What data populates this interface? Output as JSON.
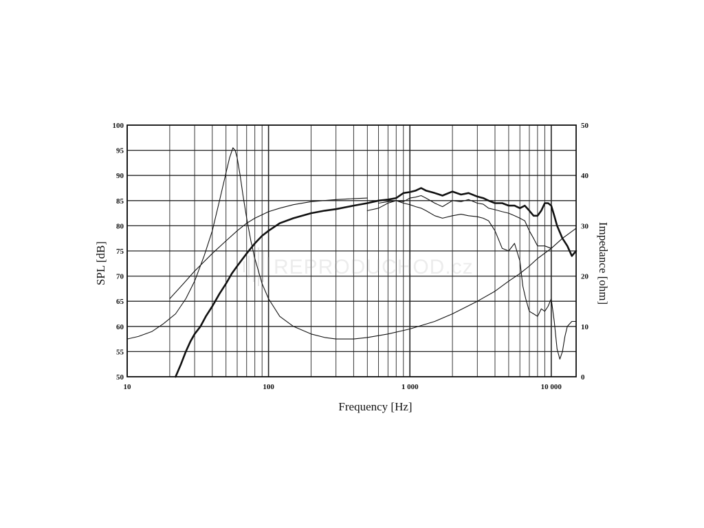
{
  "chart_data": {
    "type": "line",
    "xlabel": "Frequency [Hz]",
    "ylabel": "SPL [dB]",
    "y2label": "Impedance [ohm]",
    "xscale": "log",
    "xlim": [
      10,
      15000
    ],
    "ylim": [
      50,
      100
    ],
    "y2lim": [
      0,
      50
    ],
    "grid": true,
    "x_tick_labels": [
      {
        "value": 10,
        "label": "10"
      },
      {
        "value": 100,
        "label": "100"
      },
      {
        "value": 1000,
        "label": "1 000"
      },
      {
        "value": 10000,
        "label": "10 000"
      }
    ],
    "y_tick_labels": [
      "50",
      "55",
      "60",
      "65",
      "70",
      "75",
      "80",
      "85",
      "90",
      "95",
      "100"
    ],
    "y2_tick_labels": [
      "0",
      "10",
      "20",
      "30",
      "40",
      "50"
    ],
    "watermark": "REPRODUCHOD.cz",
    "series": [
      {
        "axis": "left",
        "style": "thick",
        "x": [
          22,
          24,
          26,
          28,
          30,
          33,
          36,
          40,
          45,
          50,
          55,
          60,
          70,
          80,
          90,
          100,
          120,
          150,
          200,
          250,
          300,
          400,
          500,
          600,
          700,
          800,
          900,
          1000,
          1100,
          1200,
          1300,
          1500,
          1700,
          2000,
          2300,
          2600,
          3000,
          3300,
          3600,
          4000,
          4500,
          5000,
          5500,
          6000,
          6500,
          7000,
          7500,
          8000,
          8500,
          9000,
          9500,
          10000,
          10500,
          11000,
          12000,
          13000,
          14000,
          15000
        ],
        "y": [
          50,
          52.5,
          55,
          57,
          58.5,
          60,
          62,
          64,
          66.5,
          68.5,
          70.5,
          72,
          74.5,
          76.5,
          78,
          79,
          80.5,
          81.5,
          82.5,
          83,
          83.3,
          84,
          84.5,
          85,
          85.2,
          85.5,
          86.5,
          86.7,
          87,
          87.5,
          87,
          86.5,
          86,
          86.8,
          86.2,
          86.5,
          85.8,
          85.5,
          85,
          84.5,
          84.5,
          84,
          84,
          83.5,
          84,
          83,
          82,
          82,
          83,
          84.5,
          84.5,
          84,
          82,
          80,
          77.5,
          76,
          74,
          75
        ]
      },
      {
        "axis": "left",
        "style": "thin",
        "x": [
          20,
          25,
          30,
          40,
          50,
          60,
          70,
          80,
          100,
          120,
          150,
          200,
          300,
          400,
          500
        ],
        "y": [
          65.5,
          68.5,
          71,
          74.5,
          77,
          79,
          80.5,
          81.5,
          82.8,
          83.5,
          84.2,
          84.8,
          85.2,
          85.4,
          85.5
        ]
      },
      {
        "axis": "left",
        "style": "thin",
        "x": [
          500,
          600,
          700,
          800,
          900,
          1000,
          1100,
          1200,
          1300,
          1500,
          1700,
          2000,
          2300,
          2600,
          3000,
          3300,
          3600,
          4000,
          4500,
          5000,
          5500,
          6000,
          6500,
          7000,
          7500,
          8000,
          9000,
          10000
        ],
        "y": [
          83,
          83.5,
          84.5,
          85,
          84.8,
          85.5,
          85.7,
          86,
          85.5,
          84.5,
          83.8,
          85,
          84.8,
          85.2,
          84.5,
          84.3,
          83.5,
          83.2,
          82.8,
          82.5,
          82,
          81.5,
          81,
          79,
          77.5,
          76,
          76,
          75.5
        ]
      },
      {
        "axis": "left",
        "style": "thin",
        "x": [
          600,
          700,
          800,
          900,
          1000,
          1100,
          1200,
          1300,
          1500,
          1700,
          2000,
          2300,
          2600,
          3000,
          3300,
          3600,
          4000,
          4500,
          5000,
          5500,
          6000,
          6300,
          6600,
          7000,
          7500,
          8000,
          8500,
          9000,
          9500,
          10000,
          10500,
          11000,
          11500,
          12000,
          12500,
          13000,
          14000,
          15000
        ],
        "y": [
          84.5,
          84.8,
          85,
          84.5,
          84.2,
          83.8,
          83.5,
          83,
          82,
          81.5,
          82,
          82.3,
          82,
          81.8,
          81.5,
          81,
          79,
          75.5,
          75,
          76.5,
          73,
          68,
          65.5,
          63,
          62.5,
          62,
          63.5,
          63,
          64,
          65.5,
          61,
          55.5,
          53.5,
          55,
          58,
          60,
          61,
          61
        ]
      },
      {
        "axis": "right",
        "style": "thin",
        "x": [
          10,
          12,
          15,
          18,
          22,
          26,
          30,
          35,
          40,
          45,
          50,
          53,
          56,
          58,
          60,
          63,
          66,
          70,
          75,
          80,
          90,
          100,
          120,
          150,
          200,
          250,
          300,
          400,
          500,
          700,
          1000,
          1500,
          2000,
          3000,
          4000,
          5000,
          6000,
          7000,
          8000,
          10000,
          12000,
          15000
        ],
        "y": [
          7.5,
          8,
          9,
          10.5,
          12.5,
          15.5,
          19,
          24,
          29,
          35,
          40.5,
          43.5,
          45.5,
          45,
          43.5,
          40,
          36,
          31.5,
          27,
          23.5,
          18.5,
          15.5,
          12,
          10,
          8.5,
          7.8,
          7.5,
          7.5,
          7.8,
          8.5,
          9.5,
          11,
          12.5,
          15,
          17,
          19,
          20.5,
          22,
          23.5,
          25.5,
          27.5,
          29.5
        ]
      }
    ]
  }
}
